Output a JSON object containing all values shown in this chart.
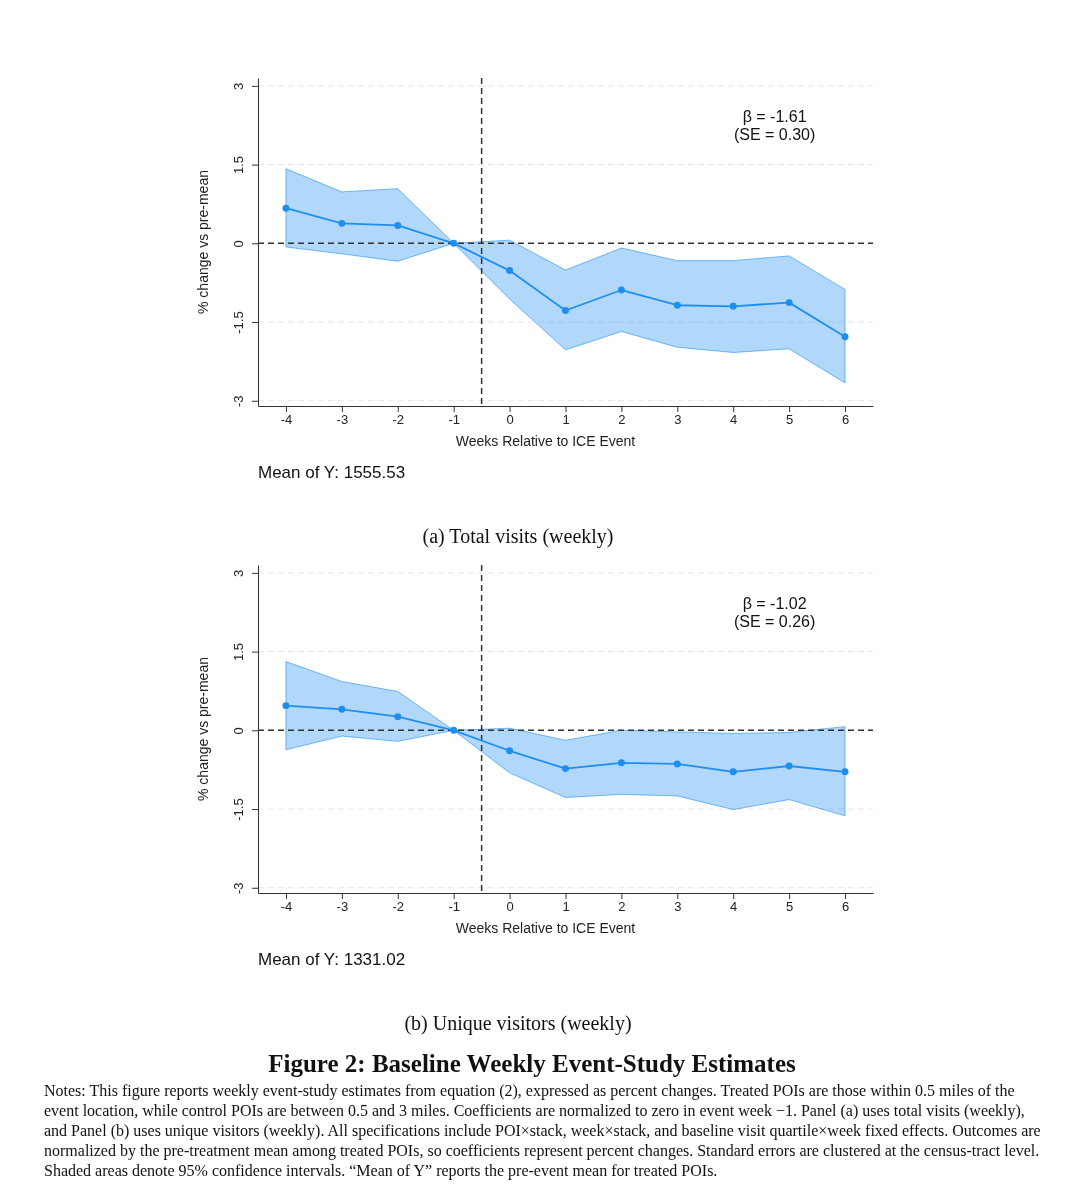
{
  "chart_data": [
    {
      "type": "line",
      "title": "(a) Total visits (weekly)",
      "xlabel": "Weeks Relative to ICE Event",
      "ylabel": "% change vs pre-mean",
      "x": [
        -4,
        -3,
        -2,
        -1,
        0,
        1,
        2,
        3,
        4,
        5,
        6
      ],
      "xlim": [
        -4.5,
        6.5
      ],
      "xticks": [
        -4,
        -3,
        -2,
        -1,
        0,
        1,
        2,
        3,
        4,
        5,
        6
      ],
      "ylim": [
        -3.1,
        3.15
      ],
      "yticks": [
        -3,
        -1.5,
        0,
        1.5,
        3
      ],
      "grid": "y",
      "marker": "circle",
      "line_style": "solid",
      "series": [
        {
          "color": "#1f8ef1",
          "values": [
            0.67,
            0.38,
            0.34,
            0,
            -0.52,
            -1.28,
            -0.89,
            -1.18,
            -1.2,
            -1.13,
            -1.78
          ],
          "lower": [
            -0.07,
            -0.2,
            -0.34,
            0,
            -1.06,
            -2.03,
            -1.68,
            -1.98,
            -2.08,
            -2.01,
            -2.66
          ],
          "upper": [
            1.42,
            0.98,
            1.04,
            0,
            0.06,
            -0.51,
            -0.09,
            -0.33,
            -0.33,
            -0.24,
            -0.88
          ]
        }
      ],
      "ref_lines": [
        {
          "axis": "y",
          "value": 0,
          "color": "#333333",
          "line_style": "dashed"
        },
        {
          "axis": "x",
          "value": -0.5,
          "color": "#333333",
          "line_style": "dashed"
        }
      ],
      "annotations": [
        "β = -1.61",
        "(SE = 0.30)",
        "Mean of Y: 1555.53"
      ]
    },
    {
      "type": "line",
      "title": "(b) Unique visitors (weekly)",
      "xlabel": "Weeks Relative to ICE Event",
      "ylabel": "% change vs pre-mean",
      "x": [
        -4,
        -3,
        -2,
        -1,
        0,
        1,
        2,
        3,
        4,
        5,
        6
      ],
      "xlim": [
        -4.5,
        6.5
      ],
      "xticks": [
        -4,
        -3,
        -2,
        -1,
        0,
        1,
        2,
        3,
        4,
        5,
        6
      ],
      "ylim": [
        -3.1,
        3.15
      ],
      "yticks": [
        -3,
        -1.5,
        0,
        1.5,
        3
      ],
      "grid": "y",
      "marker": "circle",
      "line_style": "solid",
      "series": [
        {
          "color": "#1f8ef1",
          "values": [
            0.47,
            0.4,
            0.26,
            0,
            -0.39,
            -0.73,
            -0.62,
            -0.64,
            -0.79,
            -0.68,
            -0.79
          ],
          "lower": [
            -0.37,
            -0.11,
            -0.21,
            0,
            -0.81,
            -1.28,
            -1.22,
            -1.25,
            -1.51,
            -1.32,
            -1.63
          ],
          "upper": [
            1.31,
            0.93,
            0.74,
            0,
            0.04,
            -0.19,
            0,
            -0.03,
            -0.06,
            -0.04,
            0.07
          ]
        }
      ],
      "ref_lines": [
        {
          "axis": "y",
          "value": 0,
          "color": "#333333",
          "line_style": "dashed"
        },
        {
          "axis": "x",
          "value": -0.5,
          "color": "#333333",
          "line_style": "dashed"
        }
      ],
      "annotations": [
        "β = -1.02",
        "(SE = 0.26)",
        "Mean of Y: 1331.02"
      ]
    },
    {
      "type": "other",
      "title": "Figure 2: Baseline Weekly Event-Study Estimates",
      "annotations": [
        "Notes: This figure reports weekly event-study estimates from equation (2), expressed as percent changes. Treated POIs are those within 0.5 miles of the event location, while control POIs are between 0.5 and 3 miles. Coefficients are normalized to zero in event week −1. Panel (a) uses total visits (weekly), and Panel (b) uses unique visitors (weekly). All specifications include POI×stack, week×stack, and baseline visit quartile×week fixed effects. Outcomes are normalized by the pre-treatment mean among treated POIs, so coefficients represent percent changes. Standard errors are clustered at the census-tract level. Shaded areas denote 95% confidence intervals. “Mean of Y” reports the pre-event mean for treated POIs."
      ]
    }
  ]
}
